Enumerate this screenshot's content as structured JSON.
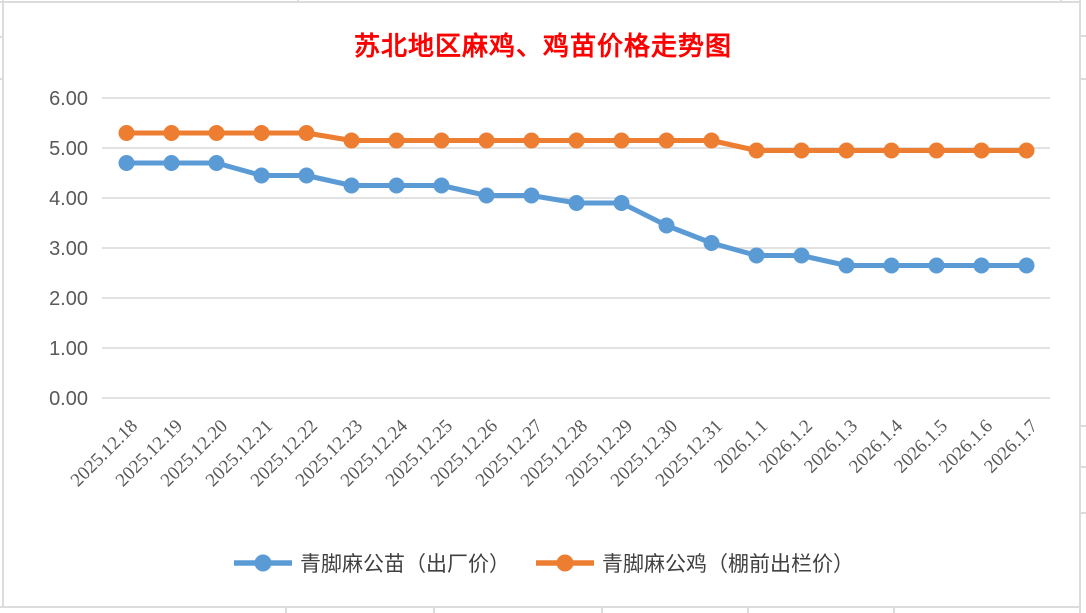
{
  "chart_data": {
    "type": "line",
    "title": "苏北地区麻鸡、鸡苗价格走势图",
    "title_color": "#FF0000",
    "categories": [
      "2025.12.18",
      "2025.12.19",
      "2025.12.20",
      "2025.12.21",
      "2025.12.22",
      "2025.12.23",
      "2025.12.24",
      "2025.12.25",
      "2025.12.26",
      "2025.12.27",
      "2025.12.28",
      "2025.12.29",
      "2025.12.30",
      "2025.12.31",
      "2026.1.1",
      "2026.1.2",
      "2026.1.3",
      "2026.1.4",
      "2026.1.5",
      "2026.1.6",
      "2026.1.7"
    ],
    "series": [
      {
        "name": "青脚麻公苗（出厂价）",
        "color": "#5B9BD5",
        "values": [
          4.7,
          4.7,
          4.7,
          4.45,
          4.45,
          4.25,
          4.25,
          4.25,
          4.05,
          4.05,
          3.9,
          3.9,
          3.45,
          3.1,
          2.85,
          2.85,
          2.65,
          2.65,
          2.65,
          2.65,
          2.65
        ]
      },
      {
        "name": "青脚麻公鸡（棚前出栏价）",
        "color": "#ED7D31",
        "values": [
          5.3,
          5.3,
          5.3,
          5.3,
          5.3,
          5.15,
          5.15,
          5.15,
          5.15,
          5.15,
          5.15,
          5.15,
          5.15,
          5.15,
          4.95,
          4.95,
          4.95,
          4.95,
          4.95,
          4.95,
          4.95
        ]
      }
    ],
    "xlabel": "",
    "ylabel": "",
    "ylim": [
      0,
      6
    ],
    "ytick_labels": [
      "0.00",
      "1.00",
      "2.00",
      "3.00",
      "4.00",
      "5.00",
      "6.00"
    ],
    "ytick_values": [
      0,
      1,
      2,
      3,
      4,
      5,
      6
    ],
    "grid": true,
    "gridline_color": "#D9D9D9",
    "axis_text_color": "#595959",
    "legend_position": "bottom",
    "x_label_rotation_deg": 45
  }
}
